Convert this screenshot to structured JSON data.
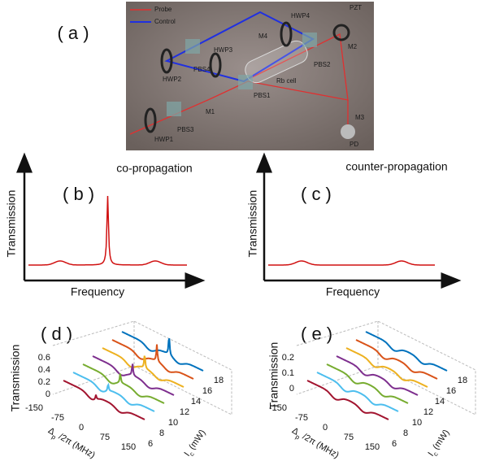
{
  "panel_a": {
    "label": "( a )",
    "legend": [
      "Probe",
      "Control"
    ],
    "components": [
      "HWP4",
      "M4",
      "PZT",
      "M2",
      "HWP3",
      "PBS4",
      "PBS2",
      "HWP2",
      "Rb cell",
      "PBS1",
      "M1",
      "M3",
      "HWP1",
      "PBS3",
      "PD"
    ]
  },
  "panel_b": {
    "label": "( b )",
    "title": "co-propagation",
    "y_label": "Transmission",
    "x_label": "Frequency"
  },
  "panel_c": {
    "label": "( c )",
    "title": "counter-propagation",
    "y_label": "Transmission",
    "x_label": "Frequency"
  },
  "panel_d": {
    "label": "( d )",
    "y_label": "Transmission",
    "y_ticks": [
      "0.6",
      "0.4",
      "0.2",
      "0"
    ],
    "x_label": {
      "symbol": "Δ",
      "sub": "p",
      "rest": " /2π (MHz)"
    },
    "x_ticks": [
      "-150",
      "-75",
      "0",
      "75",
      "150"
    ],
    "z_label": {
      "symbol": "I",
      "sub": "c",
      "rest": " (mW)"
    },
    "z_ticks": [
      "6",
      "8",
      "10",
      "12",
      "14",
      "16",
      "18"
    ]
  },
  "panel_e": {
    "label": "( e )",
    "y_label": "Transmission",
    "y_ticks": [
      "0.2",
      "0.1",
      "0"
    ],
    "x_label": {
      "symbol": "Δ",
      "sub": "p",
      "rest": " /2π (MHz)"
    },
    "x_ticks": [
      "-150",
      "-75",
      "0",
      "75",
      "150"
    ],
    "z_label": {
      "symbol": "I",
      "sub": "c",
      "rest": " (mW)"
    },
    "z_ticks": [
      "6",
      "8",
      "10",
      "12",
      "14",
      "16",
      "18"
    ]
  }
}
